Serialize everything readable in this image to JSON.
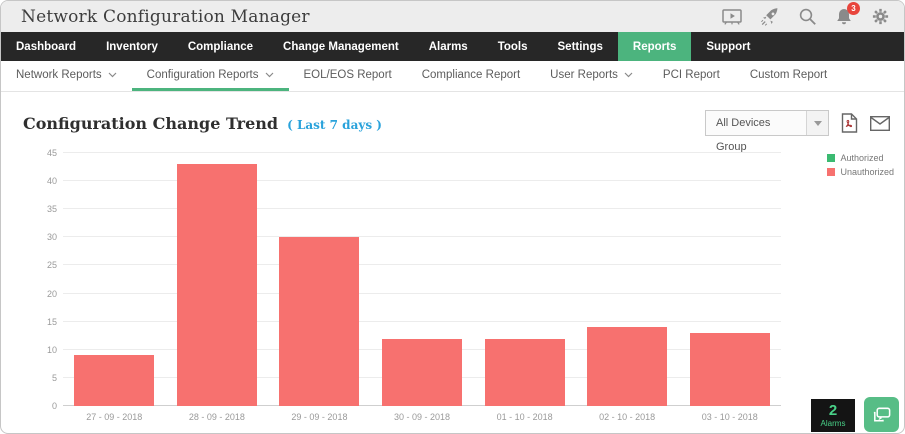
{
  "app": {
    "title": "Network Configuration Manager"
  },
  "topbar": {
    "icons": [
      "demo-video-icon",
      "rocket-icon",
      "search-icon",
      "bell-icon",
      "gear-icon"
    ],
    "bell_badge": "3"
  },
  "nav": {
    "items": [
      {
        "label": "Dashboard",
        "active": false
      },
      {
        "label": "Inventory",
        "active": false
      },
      {
        "label": "Compliance",
        "active": false
      },
      {
        "label": "Change Management",
        "active": false
      },
      {
        "label": "Alarms",
        "active": false
      },
      {
        "label": "Tools",
        "active": false
      },
      {
        "label": "Settings",
        "active": false
      },
      {
        "label": "Reports",
        "active": true
      },
      {
        "label": "Support",
        "active": false
      }
    ]
  },
  "subnav": {
    "items": [
      {
        "label": "Network Reports",
        "dropdown": true,
        "active": false
      },
      {
        "label": "Configuration Reports",
        "dropdown": true,
        "active": true
      },
      {
        "label": "EOL/EOS Report",
        "dropdown": false,
        "active": false
      },
      {
        "label": "Compliance Report",
        "dropdown": false,
        "active": false
      },
      {
        "label": "User Reports",
        "dropdown": true,
        "active": false
      },
      {
        "label": "PCI Report",
        "dropdown": false,
        "active": false
      },
      {
        "label": "Custom Report",
        "dropdown": false,
        "active": false
      }
    ]
  },
  "report": {
    "title": "Configuration Change Trend",
    "subtitle": "( Last 7 days )",
    "device_group_selected": "All Devices Group"
  },
  "chart_data": {
    "type": "bar",
    "title": "Configuration Change Trend ( Last 7 days )",
    "categories": [
      "27 - 09 - 2018",
      "28 - 09 - 2018",
      "29 - 09 - 2018",
      "30 - 09 - 2018",
      "01 - 10 - 2018",
      "02 - 10 - 2018",
      "03 - 10 - 2018"
    ],
    "series": [
      {
        "name": "Authorized",
        "color": "#3bba71",
        "values": [
          0,
          0,
          0,
          0,
          0,
          0,
          0
        ]
      },
      {
        "name": "Unauthorized",
        "color": "#f7716f",
        "values": [
          9,
          43,
          30,
          12,
          12,
          14,
          13
        ]
      }
    ],
    "xlabel": "",
    "ylabel": "",
    "ylim": [
      0,
      45
    ],
    "ytick_step": 5,
    "grid": true,
    "legend_position": "top-right"
  },
  "floating": {
    "alarm_count": "2",
    "alarm_label": "Alarms"
  },
  "colors": {
    "accent_green": "#4cb47e",
    "bar_red": "#f7716f",
    "legend_green": "#3bba71",
    "subtitle_blue": "#29a2db",
    "nav_bg": "#272727",
    "badge_red": "#e8453c"
  }
}
